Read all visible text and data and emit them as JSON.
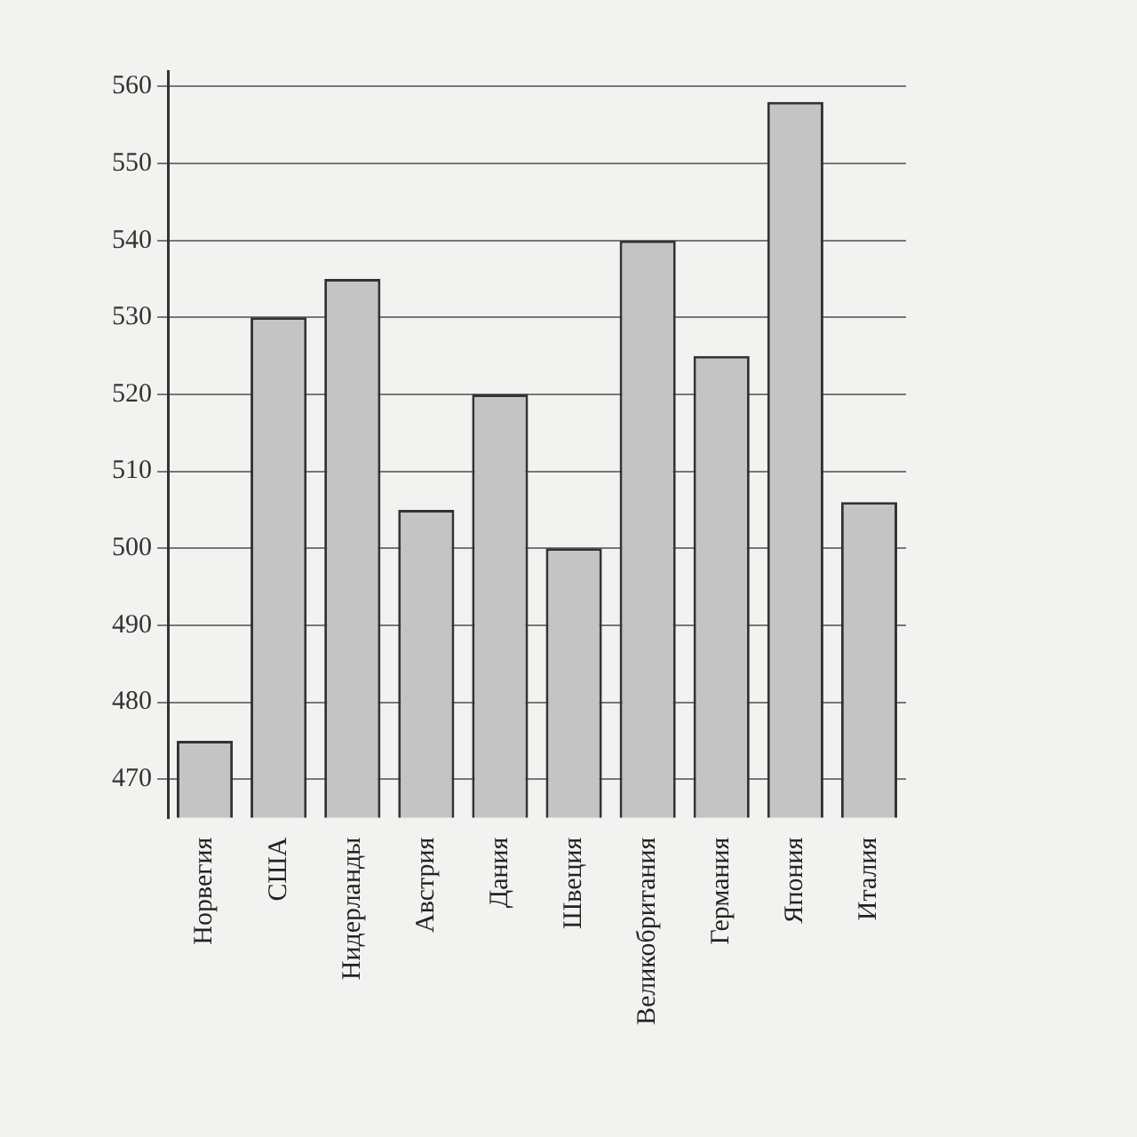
{
  "chart_data": {
    "type": "bar",
    "categories": [
      "Норвегия",
      "США",
      "Нидерланды",
      "Австрия",
      "Дания",
      "Швеция",
      "Великобритания",
      "Германия",
      "Япония",
      "Италия"
    ],
    "values": [
      475,
      530,
      535,
      505,
      520,
      500,
      540,
      525,
      558,
      506
    ],
    "color": "#c4c4c4",
    "ylim": [
      465,
      562
    ],
    "yticks": [
      470,
      480,
      490,
      500,
      510,
      520,
      530,
      540,
      550,
      560
    ],
    "grid": "y",
    "legend": false
  }
}
